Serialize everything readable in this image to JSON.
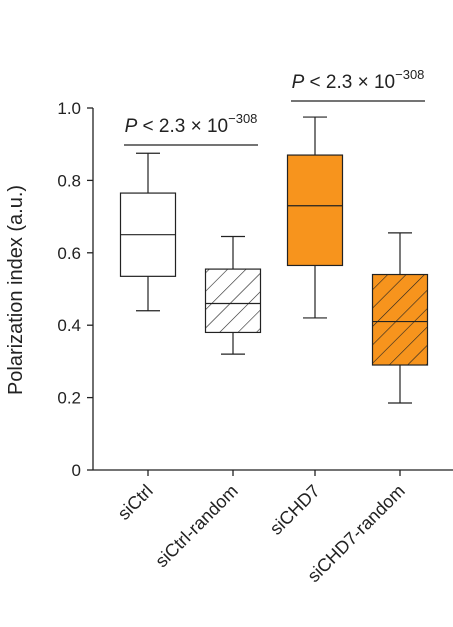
{
  "chart_data": {
    "type": "box",
    "ylabel": "Polarization index (a.u.)",
    "ylim": [
      0,
      1.0
    ],
    "yticks": [
      "0",
      "0.2",
      "0.4",
      "0.6",
      "0.8",
      "1.0"
    ],
    "categories": [
      "siCtrl",
      "siCtrl-random",
      "siCHD7",
      "siCHD7-random"
    ],
    "boxes": [
      {
        "category": "siCtrl",
        "whisker_low": 0.44,
        "q1": 0.535,
        "median": 0.65,
        "q3": 0.765,
        "whisker_high": 0.875,
        "fill": "#ffffff",
        "hatched": false
      },
      {
        "category": "siCtrl-random",
        "whisker_low": 0.32,
        "q1": 0.38,
        "median": 0.46,
        "q3": 0.555,
        "whisker_high": 0.645,
        "fill": "#ffffff",
        "hatched": true
      },
      {
        "category": "siCHD7",
        "whisker_low": 0.42,
        "q1": 0.565,
        "median": 0.73,
        "q3": 0.87,
        "whisker_high": 0.975,
        "fill": "#f7941d",
        "hatched": false
      },
      {
        "category": "siCHD7-random",
        "whisker_low": 0.185,
        "q1": 0.29,
        "median": 0.41,
        "q3": 0.54,
        "whisker_high": 0.655,
        "fill": "#f7941d",
        "hatched": true
      }
    ],
    "annotations": [
      {
        "between": [
          "siCtrl",
          "siCtrl-random"
        ],
        "prefix": "P",
        "text": " < 2.3 × 10",
        "exponent": "−308"
      },
      {
        "between": [
          "siCHD7",
          "siCHD7-random"
        ],
        "prefix": "P",
        "text": " < 2.3 × 10",
        "exponent": "−308"
      }
    ],
    "colors": {
      "accent": "#f7941d",
      "line": "#222222"
    }
  }
}
